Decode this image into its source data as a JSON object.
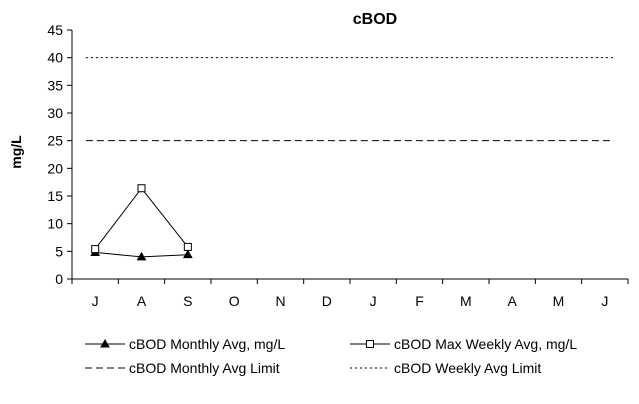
{
  "chart_data": {
    "type": "line",
    "title": "cBOD",
    "xlabel": "",
    "ylabel": "mg/L",
    "categories": [
      "J",
      "A",
      "S",
      "O",
      "N",
      "D",
      "J",
      "F",
      "M",
      "A",
      "M",
      "J"
    ],
    "ylim": [
      0,
      45
    ],
    "yticks": [
      0,
      5,
      10,
      15,
      20,
      25,
      30,
      35,
      40,
      45
    ],
    "grid": false,
    "legend_position": "bottom",
    "series": [
      {
        "name": "cBOD Monthly Avg, mg/L",
        "values": [
          4.8,
          4.0,
          4.4,
          null,
          null,
          null,
          null,
          null,
          null,
          null,
          null,
          null
        ],
        "line_style": "solid",
        "marker": "filled-triangle",
        "color": "#000000"
      },
      {
        "name": "cBOD Max Weekly Avg, mg/L",
        "values": [
          5.4,
          16.4,
          5.8,
          null,
          null,
          null,
          null,
          null,
          null,
          null,
          null,
          null
        ],
        "line_style": "solid",
        "marker": "open-square",
        "color": "#000000"
      },
      {
        "name": "cBOD Monthly Avg Limit",
        "values": [
          25,
          25,
          25,
          25,
          25,
          25,
          25,
          25,
          25,
          25,
          25,
          25
        ],
        "line_style": "dashed",
        "marker": "none",
        "color": "#000000"
      },
      {
        "name": "cBOD Weekly Avg Limit",
        "values": [
          40,
          40,
          40,
          40,
          40,
          40,
          40,
          40,
          40,
          40,
          40,
          40
        ],
        "line_style": "dotted",
        "marker": "none",
        "color": "#000000"
      }
    ]
  }
}
